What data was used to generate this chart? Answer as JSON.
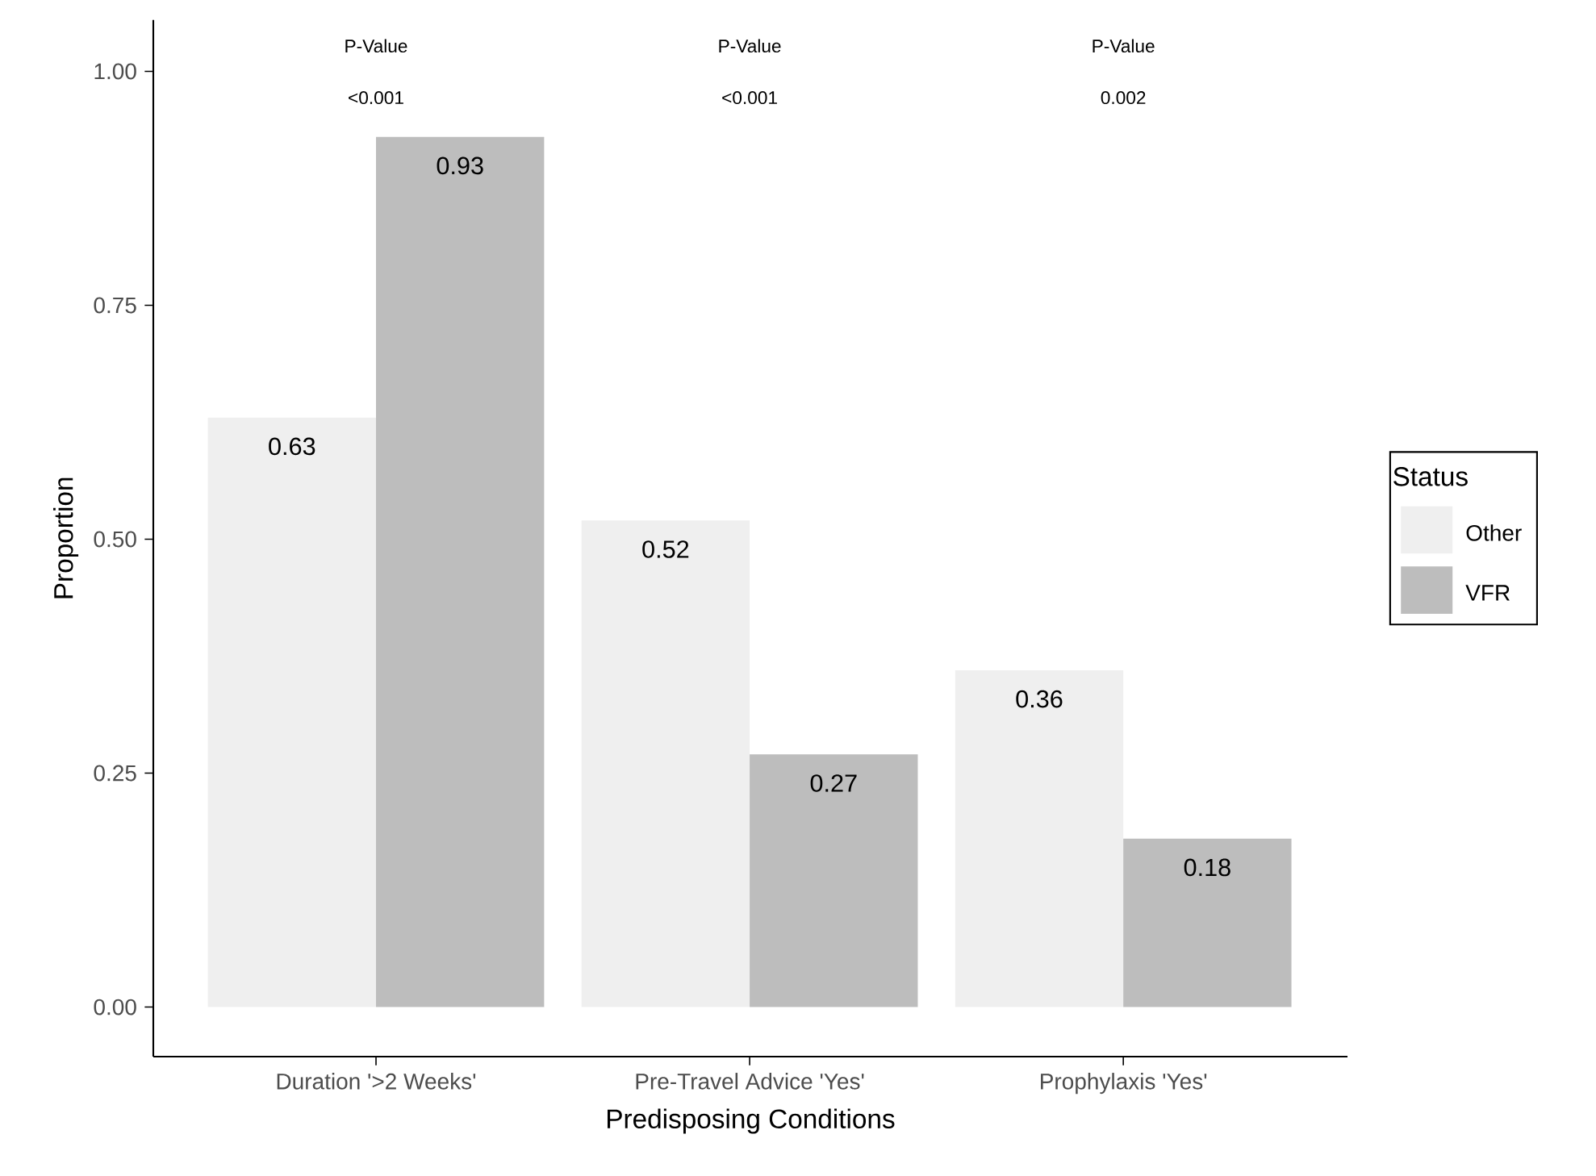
{
  "chart_data": {
    "type": "bar",
    "xlabel": "Predisposing Conditions",
    "ylabel": "Proportion",
    "legend_title": "Status",
    "legend": "right",
    "grid": false,
    "data_labels": true,
    "categories": [
      "Duration '>2 Weeks'",
      "Pre-Travel Advice 'Yes'",
      "Prophylaxis 'Yes'"
    ],
    "series": [
      {
        "name": "Other",
        "color": "#efefef",
        "values": [
          0.63,
          0.52,
          0.36
        ]
      },
      {
        "name": "VFR",
        "color": "#bdbdbd",
        "values": [
          0.93,
          0.27,
          0.18
        ]
      }
    ],
    "ylim": [
      -0.053,
      1.055
    ],
    "yticks": [
      {
        "value": 0,
        "label": "0.00"
      },
      {
        "value": 0.25,
        "label": "0.25"
      },
      {
        "value": 0.5,
        "label": "0.50"
      },
      {
        "value": 0.75,
        "label": "0.75"
      },
      {
        "value": 1,
        "label": "1.00"
      }
    ],
    "annotations": [
      "P-Value",
      "<0.001",
      "P-Value",
      "<0.001",
      "P-Value",
      "0.002"
    ]
  }
}
